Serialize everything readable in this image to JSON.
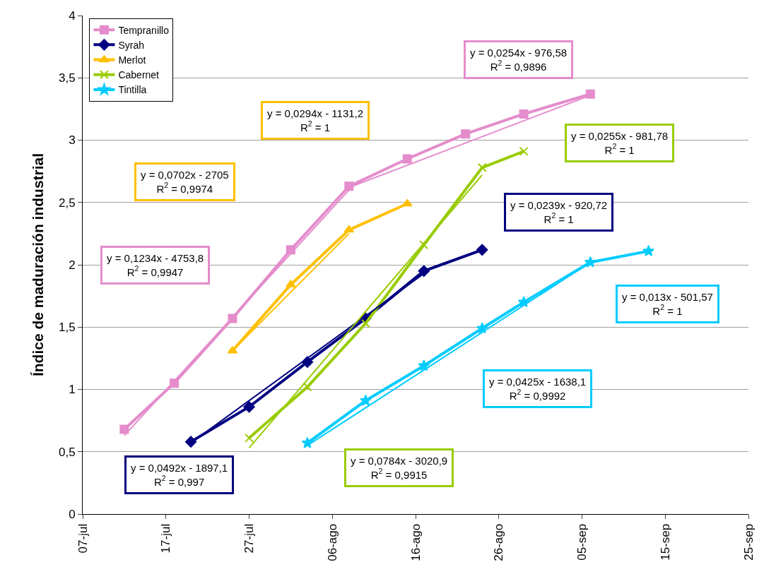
{
  "chart_data": {
    "type": "line",
    "ylabel": "Índice de maduración industrial",
    "xlim": [
      "--07-07",
      "--09-25"
    ],
    "xticks": [
      {
        "value": "--07-07",
        "label": "07-jul"
      },
      {
        "value": "--07-17",
        "label": "17-jul"
      },
      {
        "value": "--07-27",
        "label": "27-jul"
      },
      {
        "value": "--08-06",
        "label": "06-ago"
      },
      {
        "value": "--08-16",
        "label": "16-ago"
      },
      {
        "value": "--08-26",
        "label": "26-ago"
      },
      {
        "value": "--09-05",
        "label": "05-sep"
      },
      {
        "value": "--09-15",
        "label": "15-sep"
      },
      {
        "value": "--09-25",
        "label": "25-sep"
      }
    ],
    "ylim": [
      0,
      4
    ],
    "yticks": [
      0,
      {
        "value": 0.5,
        "label": "0,5"
      },
      1,
      {
        "value": 1.5,
        "label": "1,5"
      },
      2,
      {
        "value": 2.5,
        "label": "2,5"
      },
      3,
      {
        "value": 3.5,
        "label": "3,5"
      },
      4
    ],
    "grid": "y",
    "legend": "top left",
    "series": [
      {
        "name": "Tempranillo",
        "color": "#e48ccc",
        "marker": "square",
        "x": [
          "--07-12",
          "--07-18",
          "--07-25",
          "--08-01",
          "--08-08",
          "--08-15",
          "--08-22",
          "--08-29",
          "--09-06"
        ],
        "values": [
          0.68,
          1.05,
          1.57,
          2.12,
          2.63,
          2.85,
          3.05,
          3.21,
          3.37
        ]
      },
      {
        "name": "Syrah",
        "color": "#000080",
        "marker": "diamond",
        "x": [
          "--07-20",
          "--07-27",
          "--08-03",
          "--08-10",
          "--08-17",
          "--08-24"
        ],
        "values": [
          0.58,
          0.86,
          1.22,
          1.57,
          1.95,
          2.12
        ]
      },
      {
        "name": "Merlot",
        "color": "#ffc000",
        "marker": "triangle",
        "x": [
          "--07-25",
          "--08-01",
          "--08-08",
          "--08-15"
        ],
        "values": [
          1.31,
          1.84,
          2.28,
          2.49
        ]
      },
      {
        "name": "Cabernet",
        "color": "#99cc00",
        "marker": "cross",
        "x": [
          "--07-27",
          "--08-03",
          "--08-10",
          "--08-17",
          "--08-24",
          "--08-29"
        ],
        "values": [
          0.61,
          1.02,
          1.53,
          2.16,
          2.78,
          2.91
        ]
      },
      {
        "name": "Tintilla",
        "color": "#00ccff",
        "marker": "star",
        "x": [
          "--08-03",
          "--08-10",
          "--08-17",
          "--08-24",
          "--08-29",
          "--09-06",
          "--09-13"
        ],
        "values": [
          0.57,
          0.91,
          1.19,
          1.49,
          1.7,
          2.02,
          2.11
        ]
      },
      {
        "color": "#e48ccc",
        "marker": "none",
        "x": [
          "--07-12",
          "--08-08"
        ],
        "values": [
          0.63,
          2.6
        ]
      },
      {
        "color": "#e48ccc",
        "marker": "none",
        "x": [
          "--08-08",
          "--09-06"
        ],
        "values": [
          2.62,
          3.36
        ]
      },
      {
        "color": "#000080",
        "marker": "none",
        "x": [
          "--07-20",
          "--08-17"
        ],
        "values": [
          0.57,
          1.93
        ]
      },
      {
        "color": "#ffc000",
        "marker": "none",
        "x": [
          "--07-25",
          "--08-08"
        ],
        "values": [
          1.31,
          2.25
        ]
      },
      {
        "color": "#99cc00",
        "marker": "none",
        "x": [
          "--07-27",
          "--08-24"
        ],
        "values": [
          0.53,
          2.72
        ]
      },
      {
        "color": "#00ccff",
        "marker": "none",
        "x": [
          "--08-03",
          "--09-06"
        ],
        "values": [
          0.55,
          2.02
        ]
      }
    ],
    "annotations": [
      "y = 0,1234x - 4753,8\nR$^{2}$ = 0,9947",
      "y = 0,0254x - 976,58\nR$^{2}$ = 0,9896",
      "y = 0,0492x - 1897,1\nR$^{2}$ = 0,997",
      "y = 0,0239x - 920,72\nR$^{2}$ = 1",
      "y = 0,0702x - 2705\nR$^{2}$ = 0,9974",
      "y = 0,0294x - 1131,2\nR$^{2}$ = 1",
      "y = 0,0784x - 3020,9\nR$^{2}$ = 0,9915",
      "y = 0,0255x - 981,78\nR$^{2}$ = 1",
      "y = 0,0425x - 1638,1\nR$^{2}$ = 0,9992",
      "y = 0,013x - 501,57\nR$^{2}$ = 1"
    ]
  }
}
